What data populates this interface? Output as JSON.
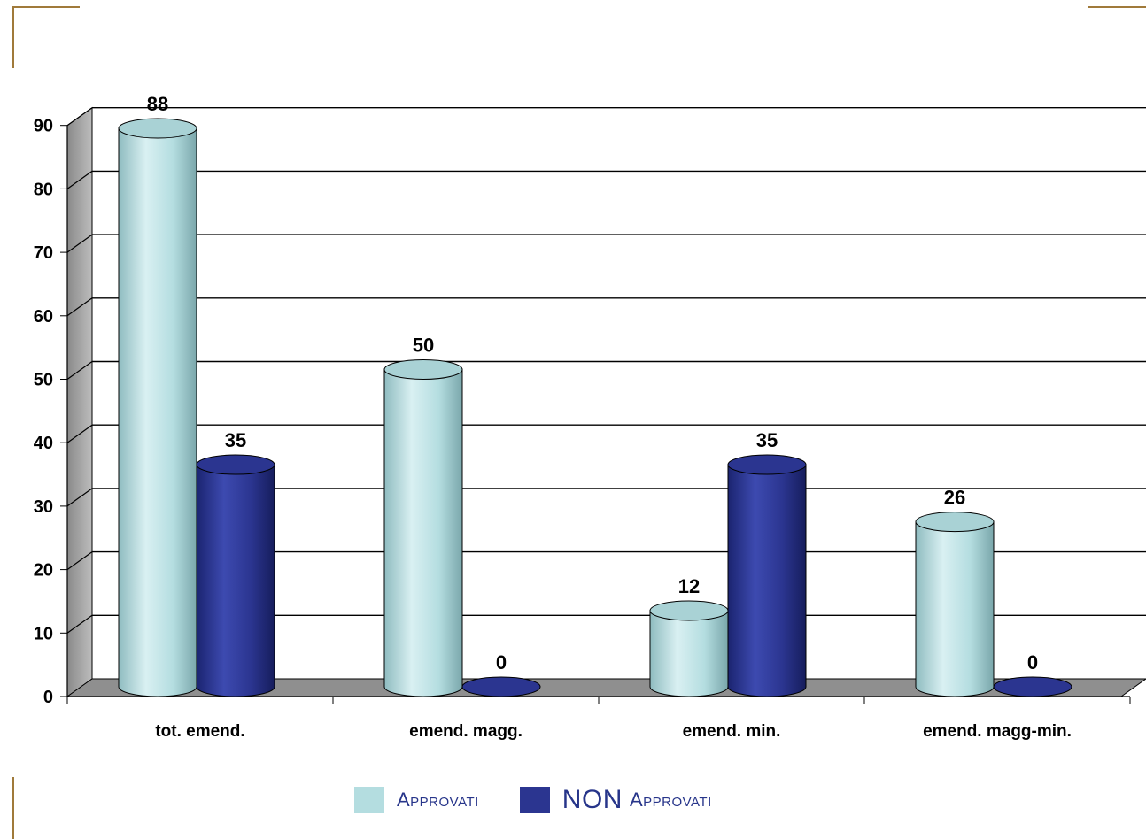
{
  "chart_data": {
    "type": "bar",
    "style": "3d-cylinder",
    "categories": [
      "tot. emend.",
      "emend. magg.",
      "emend. min.",
      "emend. magg-min."
    ],
    "series": [
      {
        "name": "Approvati",
        "values": [
          88,
          50,
          12,
          26
        ],
        "color": "#b4dde0"
      },
      {
        "name": "NON Approvati",
        "values": [
          35,
          0,
          35,
          0
        ],
        "color": "#2b3590"
      }
    ],
    "ylim": [
      0,
      90
    ],
    "yticks": [
      0,
      10,
      20,
      30,
      40,
      50,
      60,
      70,
      80,
      90
    ],
    "grid": true,
    "data_labels": true,
    "legend_position": "bottom",
    "title": "",
    "xlabel": "",
    "ylabel": ""
  },
  "legend": {
    "approvati": "Approvati",
    "non_approvati_prefix": "NON",
    "non_approvati_rest": "Approvati"
  }
}
